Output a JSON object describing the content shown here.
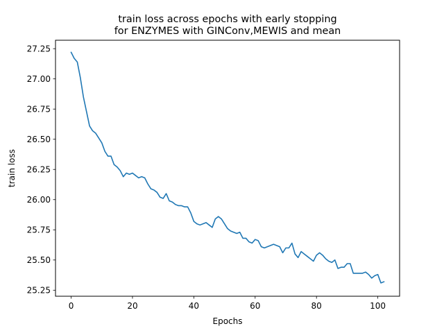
{
  "chart_data": {
    "type": "line",
    "title": "train loss across epochs with early stopping",
    "subtitle": "for ENZYMES with GINConv,MEWIS and mean",
    "xlabel": "Epochs",
    "ylabel": "train loss",
    "xlim": [
      -5.1,
      107.1
    ],
    "ylim": [
      25.2,
      27.32
    ],
    "xticks": [
      0,
      20,
      40,
      60,
      80,
      100
    ],
    "xtick_labels": [
      "0",
      "20",
      "40",
      "60",
      "80",
      "100"
    ],
    "yticks": [
      25.25,
      25.5,
      25.75,
      26.0,
      26.25,
      26.5,
      26.75,
      27.0,
      27.25
    ],
    "ytick_labels": [
      "25.25",
      "25.50",
      "25.75",
      "26.00",
      "26.25",
      "26.50",
      "26.75",
      "27.00",
      "27.25"
    ],
    "grid": false,
    "legend": "none",
    "series": [
      {
        "color": "#1f77b4",
        "x": [
          0,
          1,
          2,
          3,
          4,
          5,
          6,
          7,
          8,
          9,
          10,
          11,
          12,
          13,
          14,
          15,
          16,
          17,
          18,
          19,
          20,
          21,
          22,
          23,
          24,
          25,
          26,
          27,
          28,
          29,
          30,
          31,
          32,
          33,
          34,
          35,
          36,
          37,
          38,
          39,
          40,
          41,
          42,
          43,
          44,
          45,
          46,
          47,
          48,
          49,
          50,
          51,
          52,
          53,
          54,
          55,
          56,
          57,
          58,
          59,
          60,
          61,
          62,
          63,
          64,
          65,
          66,
          67,
          68,
          69,
          70,
          71,
          72,
          73,
          74,
          75,
          76,
          77,
          78,
          79,
          80,
          81,
          82,
          83,
          84,
          85,
          86,
          87,
          88,
          89,
          90,
          91,
          92,
          93,
          94,
          95,
          96,
          97,
          98,
          99,
          100,
          101,
          102
        ],
        "y": [
          27.22,
          27.17,
          27.14,
          27.01,
          26.85,
          26.73,
          26.61,
          26.57,
          26.55,
          26.51,
          26.47,
          26.4,
          26.36,
          26.36,
          26.29,
          26.27,
          26.24,
          26.19,
          26.22,
          26.21,
          26.22,
          26.2,
          26.18,
          26.19,
          26.18,
          26.13,
          26.09,
          26.08,
          26.06,
          26.02,
          26.01,
          26.05,
          25.99,
          25.98,
          25.96,
          25.95,
          25.95,
          25.94,
          25.94,
          25.89,
          25.82,
          25.8,
          25.79,
          25.8,
          25.81,
          25.79,
          25.77,
          25.84,
          25.86,
          25.84,
          25.8,
          25.76,
          25.74,
          25.73,
          25.72,
          25.73,
          25.68,
          25.68,
          25.65,
          25.64,
          25.67,
          25.66,
          25.61,
          25.6,
          25.61,
          25.62,
          25.63,
          25.62,
          25.61,
          25.56,
          25.6,
          25.6,
          25.64,
          25.55,
          25.52,
          25.57,
          25.55,
          25.53,
          25.51,
          25.49,
          25.54,
          25.56,
          25.54,
          25.51,
          25.49,
          25.48,
          25.5,
          25.43,
          25.44,
          25.44,
          25.47,
          25.47,
          25.39,
          25.39,
          25.39,
          25.39,
          25.4,
          25.38,
          25.35,
          25.37,
          25.38,
          25.31,
          25.32
        ]
      }
    ]
  }
}
